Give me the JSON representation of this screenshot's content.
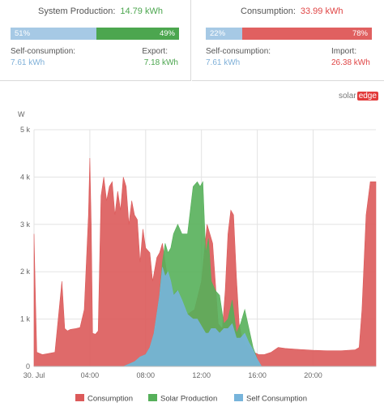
{
  "production": {
    "label": "System Production:",
    "value": "14.79 kWh",
    "left_pct_label": "51%",
    "right_pct_label": "49%",
    "left_fraction": 0.51,
    "self_label": "Self-consumption:",
    "self_value": "7.61 kWh",
    "export_label": "Export:",
    "export_value": "7.18 kWh"
  },
  "consumption": {
    "label": "Consumption:",
    "value": "33.99 kWh",
    "left_pct_label": "22%",
    "right_pct_label": "78%",
    "left_fraction": 0.22,
    "self_label": "Self-consumption:",
    "self_value": "7.61 kWh",
    "import_label": "Import:",
    "import_value": "26.38 kWh"
  },
  "logo": {
    "word": "solar",
    "box": "edge"
  },
  "colors": {
    "self": "#a6c9e5",
    "self_text": "#7fb0d8",
    "export": "#4ca64f",
    "import": "#e06060",
    "import_text": "#e04545",
    "consumption_area": "#dc5a5a",
    "production_area": "#56b05a",
    "self_area": "#77b4db"
  },
  "chart_data": {
    "type": "area",
    "ylabel": "W",
    "ylim": [
      0,
      5000
    ],
    "yticks": [
      0,
      1000,
      2000,
      3000,
      4000,
      5000
    ],
    "ytick_labels": [
      "0",
      "1 k",
      "2 k",
      "3 k",
      "4 k",
      "5 k"
    ],
    "xlim": [
      0,
      24.5
    ],
    "xticks": [
      0,
      4,
      8,
      12,
      16,
      20
    ],
    "xtick_labels": [
      "30. Jul",
      "04:00",
      "08:00",
      "12:00",
      "16:00",
      "20:00"
    ],
    "grid": true,
    "legend_position": "bottom",
    "series": [
      {
        "name": "Consumption",
        "x": [
          0,
          0.1,
          0.2,
          0.6,
          1.0,
          1.5,
          2.0,
          2.2,
          2.4,
          2.6,
          3.0,
          3.3,
          3.6,
          3.9,
          4.0,
          4.1,
          4.2,
          4.4,
          4.6,
          4.8,
          5.0,
          5.2,
          5.4,
          5.6,
          5.8,
          6.0,
          6.2,
          6.4,
          6.6,
          6.8,
          7.0,
          7.2,
          7.4,
          7.6,
          7.8,
          8.0,
          8.3,
          8.5,
          8.8,
          9.0,
          9.2,
          9.4,
          9.6,
          9.8,
          10.0,
          10.2,
          10.5,
          11.0,
          11.5,
          12.0,
          12.4,
          12.8,
          13.2,
          13.5,
          13.7,
          13.9,
          14.1,
          14.3,
          14.5,
          14.7,
          14.9,
          15.1,
          15.3,
          15.5,
          15.7,
          15.9,
          16.1,
          16.5,
          17.0,
          17.5,
          18.0,
          19.0,
          20.0,
          21.0,
          22.0,
          23.0,
          23.3,
          23.5,
          23.8,
          24.1,
          24.5
        ],
        "values": [
          2800,
          1500,
          300,
          250,
          270,
          300,
          1800,
          800,
          750,
          780,
          800,
          820,
          1200,
          3200,
          4400,
          3000,
          700,
          680,
          750,
          3600,
          4000,
          3500,
          3800,
          3900,
          3200,
          3700,
          3300,
          4000,
          3800,
          3000,
          3500,
          3200,
          3100,
          2200,
          2900,
          2500,
          2400,
          1800,
          2300,
          2400,
          2600,
          2200,
          1800,
          1800,
          1500,
          1600,
          1400,
          1100,
          1200,
          1800,
          3000,
          2600,
          900,
          800,
          1600,
          2800,
          3300,
          3200,
          1900,
          900,
          600,
          500,
          400,
          350,
          300,
          280,
          250,
          250,
          300,
          400,
          380,
          360,
          340,
          330,
          330,
          350,
          400,
          1200,
          3200,
          3900,
          3900
        ]
      },
      {
        "name": "Solar Production",
        "x": [
          6.4,
          6.8,
          7.2,
          7.6,
          8.0,
          8.3,
          8.6,
          9.0,
          9.2,
          9.4,
          9.6,
          9.8,
          10.0,
          10.3,
          10.6,
          11.0,
          11.4,
          11.7,
          11.9,
          12.1,
          12.3,
          12.5,
          12.7,
          13.0,
          13.3,
          13.6,
          13.9,
          14.2,
          14.5,
          14.8,
          15.1,
          15.4,
          15.7,
          16.0,
          16.3
        ],
        "values": [
          0,
          50,
          100,
          200,
          250,
          400,
          700,
          1500,
          2200,
          2600,
          2400,
          2500,
          2800,
          3000,
          2800,
          2800,
          3800,
          3900,
          3800,
          3900,
          2400,
          2700,
          1800,
          1600,
          1500,
          900,
          1000,
          1400,
          700,
          900,
          1200,
          800,
          400,
          150,
          0
        ]
      },
      {
        "name": "Self Consumption",
        "x": [
          6.4,
          6.8,
          7.2,
          7.6,
          8.0,
          8.3,
          8.6,
          9.0,
          9.2,
          9.4,
          9.6,
          9.8,
          10.0,
          10.3,
          10.6,
          11.0,
          11.4,
          11.7,
          11.9,
          12.1,
          12.3,
          12.5,
          12.7,
          13.0,
          13.3,
          13.6,
          13.9,
          14.2,
          14.5,
          14.8,
          15.1,
          15.4,
          15.7,
          16.0,
          16.3
        ],
        "values": [
          0,
          50,
          100,
          200,
          250,
          400,
          700,
          1500,
          2100,
          1900,
          2000,
          1800,
          1500,
          1600,
          1400,
          1100,
          1000,
          1000,
          900,
          800,
          700,
          700,
          800,
          800,
          700,
          800,
          800,
          900,
          600,
          600,
          700,
          500,
          350,
          150,
          0
        ]
      }
    ]
  }
}
